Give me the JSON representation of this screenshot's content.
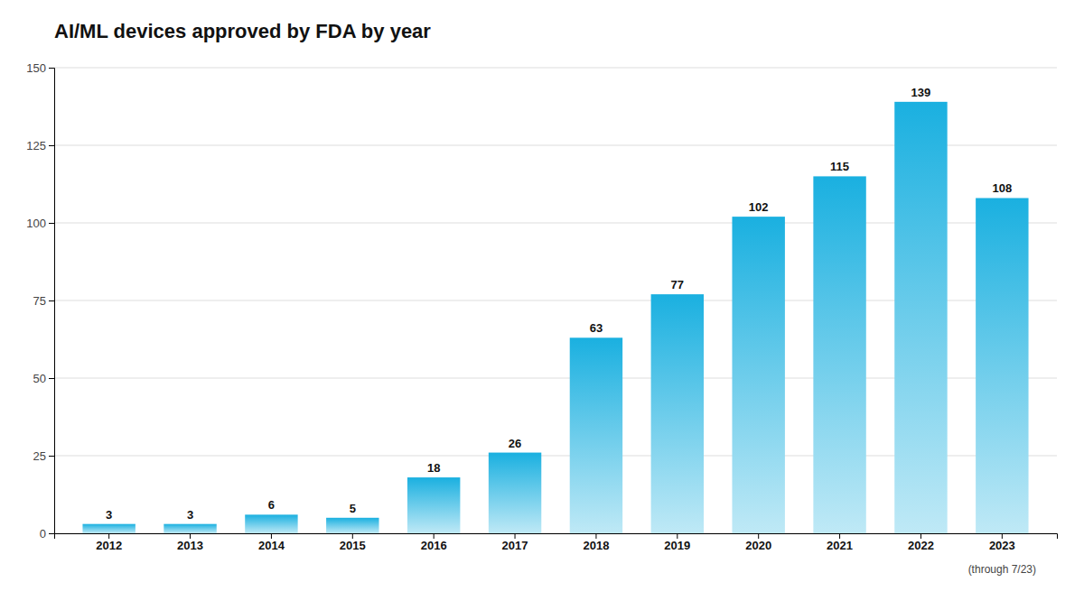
{
  "chart_data": {
    "type": "bar",
    "title": "AI/ML devices approved by FDA by year",
    "categories": [
      "2012",
      "2013",
      "2014",
      "2015",
      "2016",
      "2017",
      "2018",
      "2019",
      "2020",
      "2021",
      "2022",
      "2023"
    ],
    "values": [
      3,
      3,
      6,
      5,
      18,
      26,
      63,
      77,
      102,
      115,
      139,
      108
    ],
    "color": "#1ab0e0",
    "ylim": [
      0,
      150
    ],
    "yticks": [
      0,
      25,
      50,
      75,
      100,
      125,
      150
    ],
    "grid": true,
    "data_labels": true,
    "annotations": [
      {
        "text": "(through 7/23)",
        "x": "2023"
      }
    ]
  }
}
